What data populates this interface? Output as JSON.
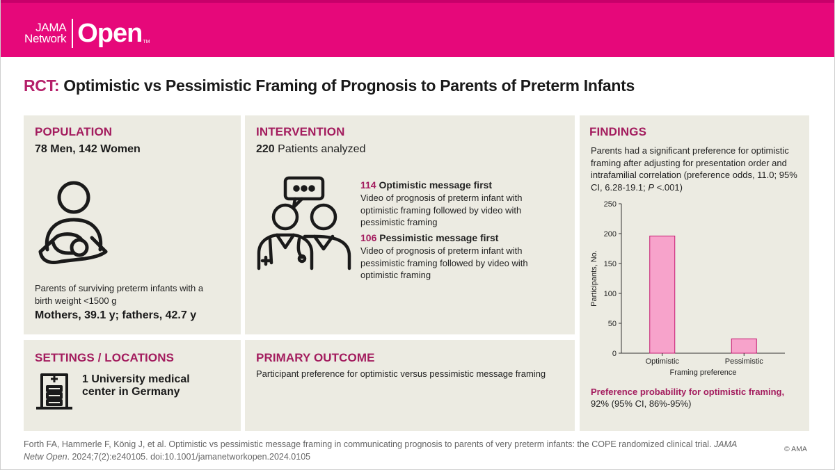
{
  "brand": {
    "small_line1": "JAMA",
    "small_line2": "Network",
    "big": "Open",
    "tm": "TM"
  },
  "title": {
    "kind": "RCT:",
    "text": "Optimistic vs Pessimistic Framing of Prognosis to Parents of Preterm Infants"
  },
  "population": {
    "heading": "POPULATION",
    "counts": "78 Men, 142 Women",
    "description": "Parents of surviving preterm infants with a birth weight <1500 g",
    "ages": "Mothers, 39.1 y; fathers, 42.7 y",
    "icon": "parent-holding-infant-icon"
  },
  "intervention": {
    "heading": "INTERVENTION",
    "count": "220",
    "count_label": "Patients analyzed",
    "icon": "clinicians-discussion-icon",
    "arms": [
      {
        "n": "114",
        "label": "Optimistic message first",
        "description": "Video of prognosis of preterm infant with optimistic framing followed by video with pessimistic framing"
      },
      {
        "n": "106",
        "label": "Pessimistic message first",
        "description": "Video of prognosis of preterm infant with pessimistic framing followed by video with optimistic framing"
      }
    ]
  },
  "settings": {
    "heading": "SETTINGS / LOCATIONS",
    "line1": "1 University medical",
    "line2": "center in Germany",
    "icon": "hospital-building-icon"
  },
  "outcome": {
    "heading": "PRIMARY OUTCOME",
    "text": "Participant preference for optimistic versus pessimistic message framing"
  },
  "findings": {
    "heading": "FINDINGS",
    "summary_main": "Parents had a significant preference for optimistic framing after adjusting for presentation order and intrafamilial correlation (preference odds, 11.0; 95% CI, 6.28-19.1; ",
    "summary_p": "P",
    "summary_end": " <.001)",
    "probability_label": "Preference probability for optimistic framing,",
    "probability_value": "92% (95% CI, 86%-95%)"
  },
  "chart_data": {
    "type": "bar",
    "categories": [
      "Optimistic",
      "Pessimistic"
    ],
    "values": [
      196,
      24
    ],
    "xlabel": "Framing preference",
    "ylabel": "Participants, No.",
    "ylim": [
      0,
      250
    ],
    "yticks": [
      0,
      50,
      100,
      150,
      200,
      250
    ],
    "bar_color": "#f7a3cb",
    "bar_stroke": "#c51a72"
  },
  "citation": {
    "text": "Forth FA, Hammerle F, König J, et al. Optimistic vs pessimistic message framing in communicating prognosis to parents of very preterm infants: the COPE randomized clinical trial. ",
    "journal": "JAMA Netw Open",
    "rest": ". 2024;7(2):e240105. doi:10.1001/jamanetworkopen.2024.0105"
  },
  "copyright": "© AMA",
  "colors": {
    "brand": "#e6087a",
    "heading": "#a31c5e",
    "panel": "#ecebe2"
  }
}
